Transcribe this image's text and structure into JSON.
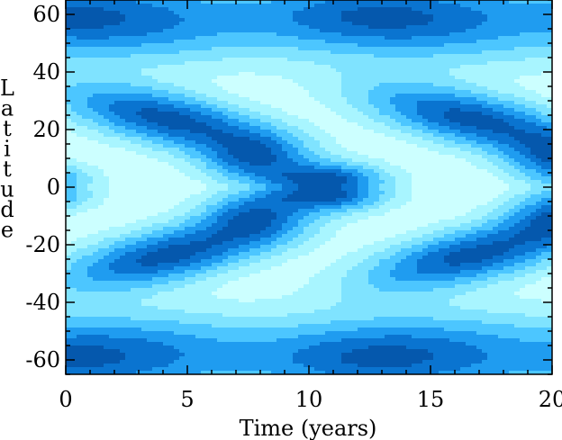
{
  "chart_data": {
    "type": "heatmap",
    "title": "",
    "xlabel": "Time (years)",
    "ylabel": "Latitude",
    "xlim": [
      0,
      20
    ],
    "ylim": [
      -65,
      65
    ],
    "grid": false,
    "legend": "none",
    "x_major_ticks": [
      0,
      5,
      10,
      15,
      20
    ],
    "x_minor_tick_step": 1,
    "y_major_ticks": [
      -60,
      -40,
      -20,
      0,
      20,
      40,
      60
    ],
    "y_minor_tick_step": 5,
    "x_tick_labels": [
      "0",
      "5",
      "10",
      "15",
      "20"
    ],
    "y_tick_labels": [
      "-60",
      "-40",
      "-20",
      "0",
      "20",
      "40",
      "60"
    ],
    "colors": [
      "#ccffff",
      "#a8f5ff",
      "#7fe3ff",
      "#4cc6ff",
      "#1f9cf0",
      "#0a74d0",
      "#0558ad"
    ],
    "cycle_period_years": 12.5,
    "features": [
      {
        "kind": "core",
        "t": 4.8,
        "lat": 24
      },
      {
        "kind": "core",
        "t": 4.8,
        "lat": -24
      },
      {
        "kind": "core",
        "t": 17.3,
        "lat": 24
      },
      {
        "kind": "core",
        "t": 17.3,
        "lat": -24
      },
      {
        "kind": "core",
        "t": 10.8,
        "lat": 0
      },
      {
        "kind": "core",
        "t": 0.1,
        "lat": 0
      },
      {
        "kind": "high-latitude band",
        "t": 3.0,
        "lat": 60
      },
      {
        "kind": "high-latitude band",
        "t": 3.0,
        "lat": -60
      },
      {
        "kind": "high-latitude band",
        "t": 15.5,
        "lat": 60
      },
      {
        "kind": "high-latitude band",
        "t": 15.5,
        "lat": -60
      }
    ]
  }
}
